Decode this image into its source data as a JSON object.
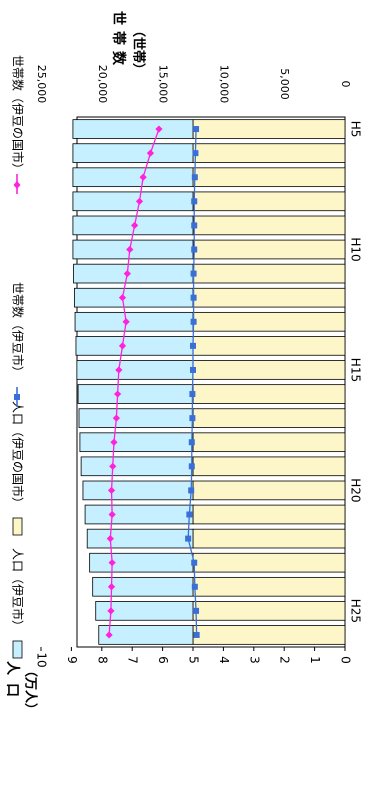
{
  "chart_data": {
    "type": "bar",
    "orientation": "horizontal (chart rotated 90° clockwise; categories run top to bottom)",
    "categories": [
      "H5",
      "H6",
      "H7",
      "H8",
      "H9",
      "H10",
      "H11",
      "H12",
      "H13",
      "H14",
      "H15",
      "H16",
      "H17",
      "H18",
      "H19",
      "H20",
      "H21",
      "H22",
      "H23",
      "H24",
      "H25",
      "H26"
    ],
    "x_tick_labels": [
      "H5",
      "H10",
      "H15",
      "H20",
      "H25"
    ],
    "left_axis": {
      "label": "人口（万人）",
      "label_parts": [
        "人",
        "口",
        "（万人）"
      ],
      "ticks": [
        0,
        1,
        2,
        3,
        4,
        5,
        6,
        7,
        8,
        9,
        10
      ],
      "ylim": [
        0,
        10
      ]
    },
    "right_axis": {
      "label": "世帯数（世帯）",
      "label_parts": [
        "世",
        "帯",
        "数",
        "（世帯）"
      ],
      "ticks": [
        "0",
        "5,000",
        "10,000",
        "15,000",
        "20,000",
        "25,000"
      ],
      "ylim": [
        0,
        25000
      ]
    },
    "stacked": true,
    "grid": false,
    "legend_placement": "top",
    "legend": [
      {
        "label": "人口（伊豆市）",
        "kind": "bar",
        "color": "#c6efff"
      },
      {
        "label": "人口（伊豆の国市）",
        "kind": "bar",
        "color": "#fdf6c8"
      },
      {
        "label": "世帯数（伊豆市）",
        "kind": "line",
        "color": "#3a6fd8"
      },
      {
        "label": "世帯数（伊豆の国市）",
        "kind": "line",
        "color": "#ff22dd"
      }
    ],
    "series": [
      {
        "name": "人口（伊豆の国市）",
        "kind": "bar",
        "axis": "left",
        "color": "#fdf6c8",
        "values": [
          5.0,
          5.0,
          5.0,
          5.0,
          5.0,
          5.0,
          5.0,
          5.0,
          5.0,
          5.0,
          5.0,
          5.0,
          5.0,
          5.0,
          5.0,
          5.0,
          5.0,
          5.0,
          5.0,
          5.0,
          5.0,
          5.0
        ]
      },
      {
        "name": "人口（伊豆市）",
        "kind": "bar",
        "axis": "left",
        "color": "#c6efff",
        "values": [
          3.95,
          3.95,
          3.95,
          3.95,
          3.95,
          3.95,
          3.93,
          3.9,
          3.88,
          3.85,
          3.82,
          3.78,
          3.75,
          3.72,
          3.68,
          3.62,
          3.55,
          3.48,
          3.4,
          3.3,
          3.2,
          3.1
        ]
      },
      {
        "name": "世帯数（伊豆市）",
        "kind": "line",
        "axis": "right",
        "color": "#3a6fd8",
        "values": [
          12250,
          12300,
          12350,
          12400,
          12400,
          12400,
          12450,
          12450,
          12450,
          12500,
          12500,
          12550,
          12550,
          12600,
          12600,
          12650,
          12800,
          12900,
          12400,
          12350,
          12250,
          12200
        ]
      },
      {
        "name": "世帯数（伊豆の国市）",
        "kind": "line",
        "axis": "right",
        "color": "#ff22dd",
        "values": [
          15300,
          16000,
          16600,
          16900,
          17300,
          17700,
          17900,
          18300,
          18000,
          18300,
          18600,
          18700,
          18800,
          19000,
          19100,
          19200,
          19150,
          19300,
          19150,
          19200,
          19250,
          19400
        ]
      }
    ]
  }
}
